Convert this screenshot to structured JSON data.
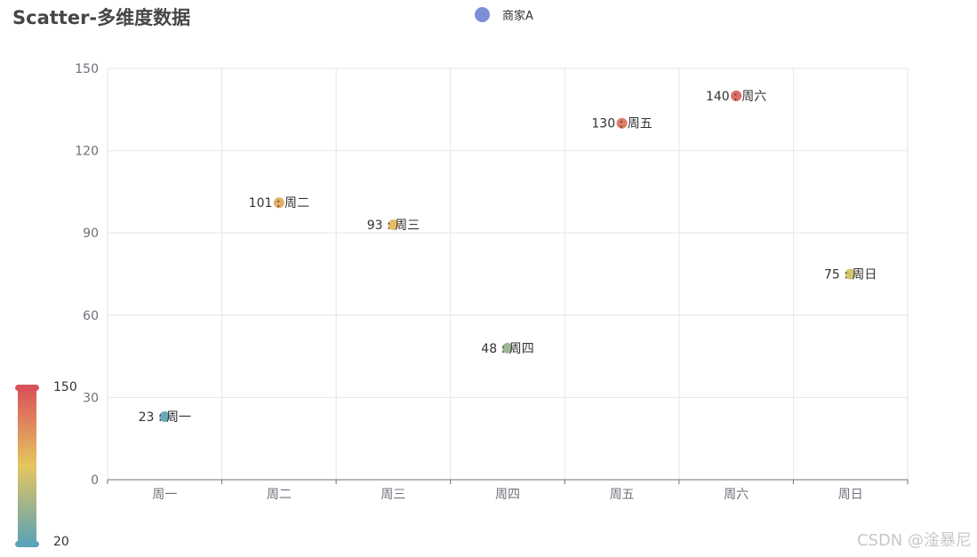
{
  "title": "Scatter-多维度数据",
  "legend": {
    "label": "商家A",
    "color": "#7b8fd6"
  },
  "chart_data": {
    "type": "scatter",
    "title": "Scatter-多维度数据",
    "categories": [
      "周一",
      "周二",
      "周三",
      "周四",
      "周五",
      "周六",
      "周日"
    ],
    "series": [
      {
        "name": "商家A",
        "values": [
          23,
          101,
          93,
          48,
          130,
          140,
          75
        ]
      }
    ],
    "data_labels": [
      "23 : 周一",
      "101 : 周二",
      "93 : 周三",
      "48 : 周四",
      "130 : 周五",
      "140 : 周六",
      "75 : 周日"
    ],
    "ylim": [
      0,
      150
    ],
    "yticks": [
      0,
      30,
      60,
      90,
      120,
      150
    ],
    "grid": true,
    "legend_position": "top-center"
  },
  "visual_map": {
    "min": 20,
    "max": 150,
    "min_label": "20",
    "max_label": "150",
    "colors": [
      "#5ba3b6",
      "#e6c65f",
      "#d9525a"
    ]
  },
  "watermark": "CSDN @淦暴尼"
}
